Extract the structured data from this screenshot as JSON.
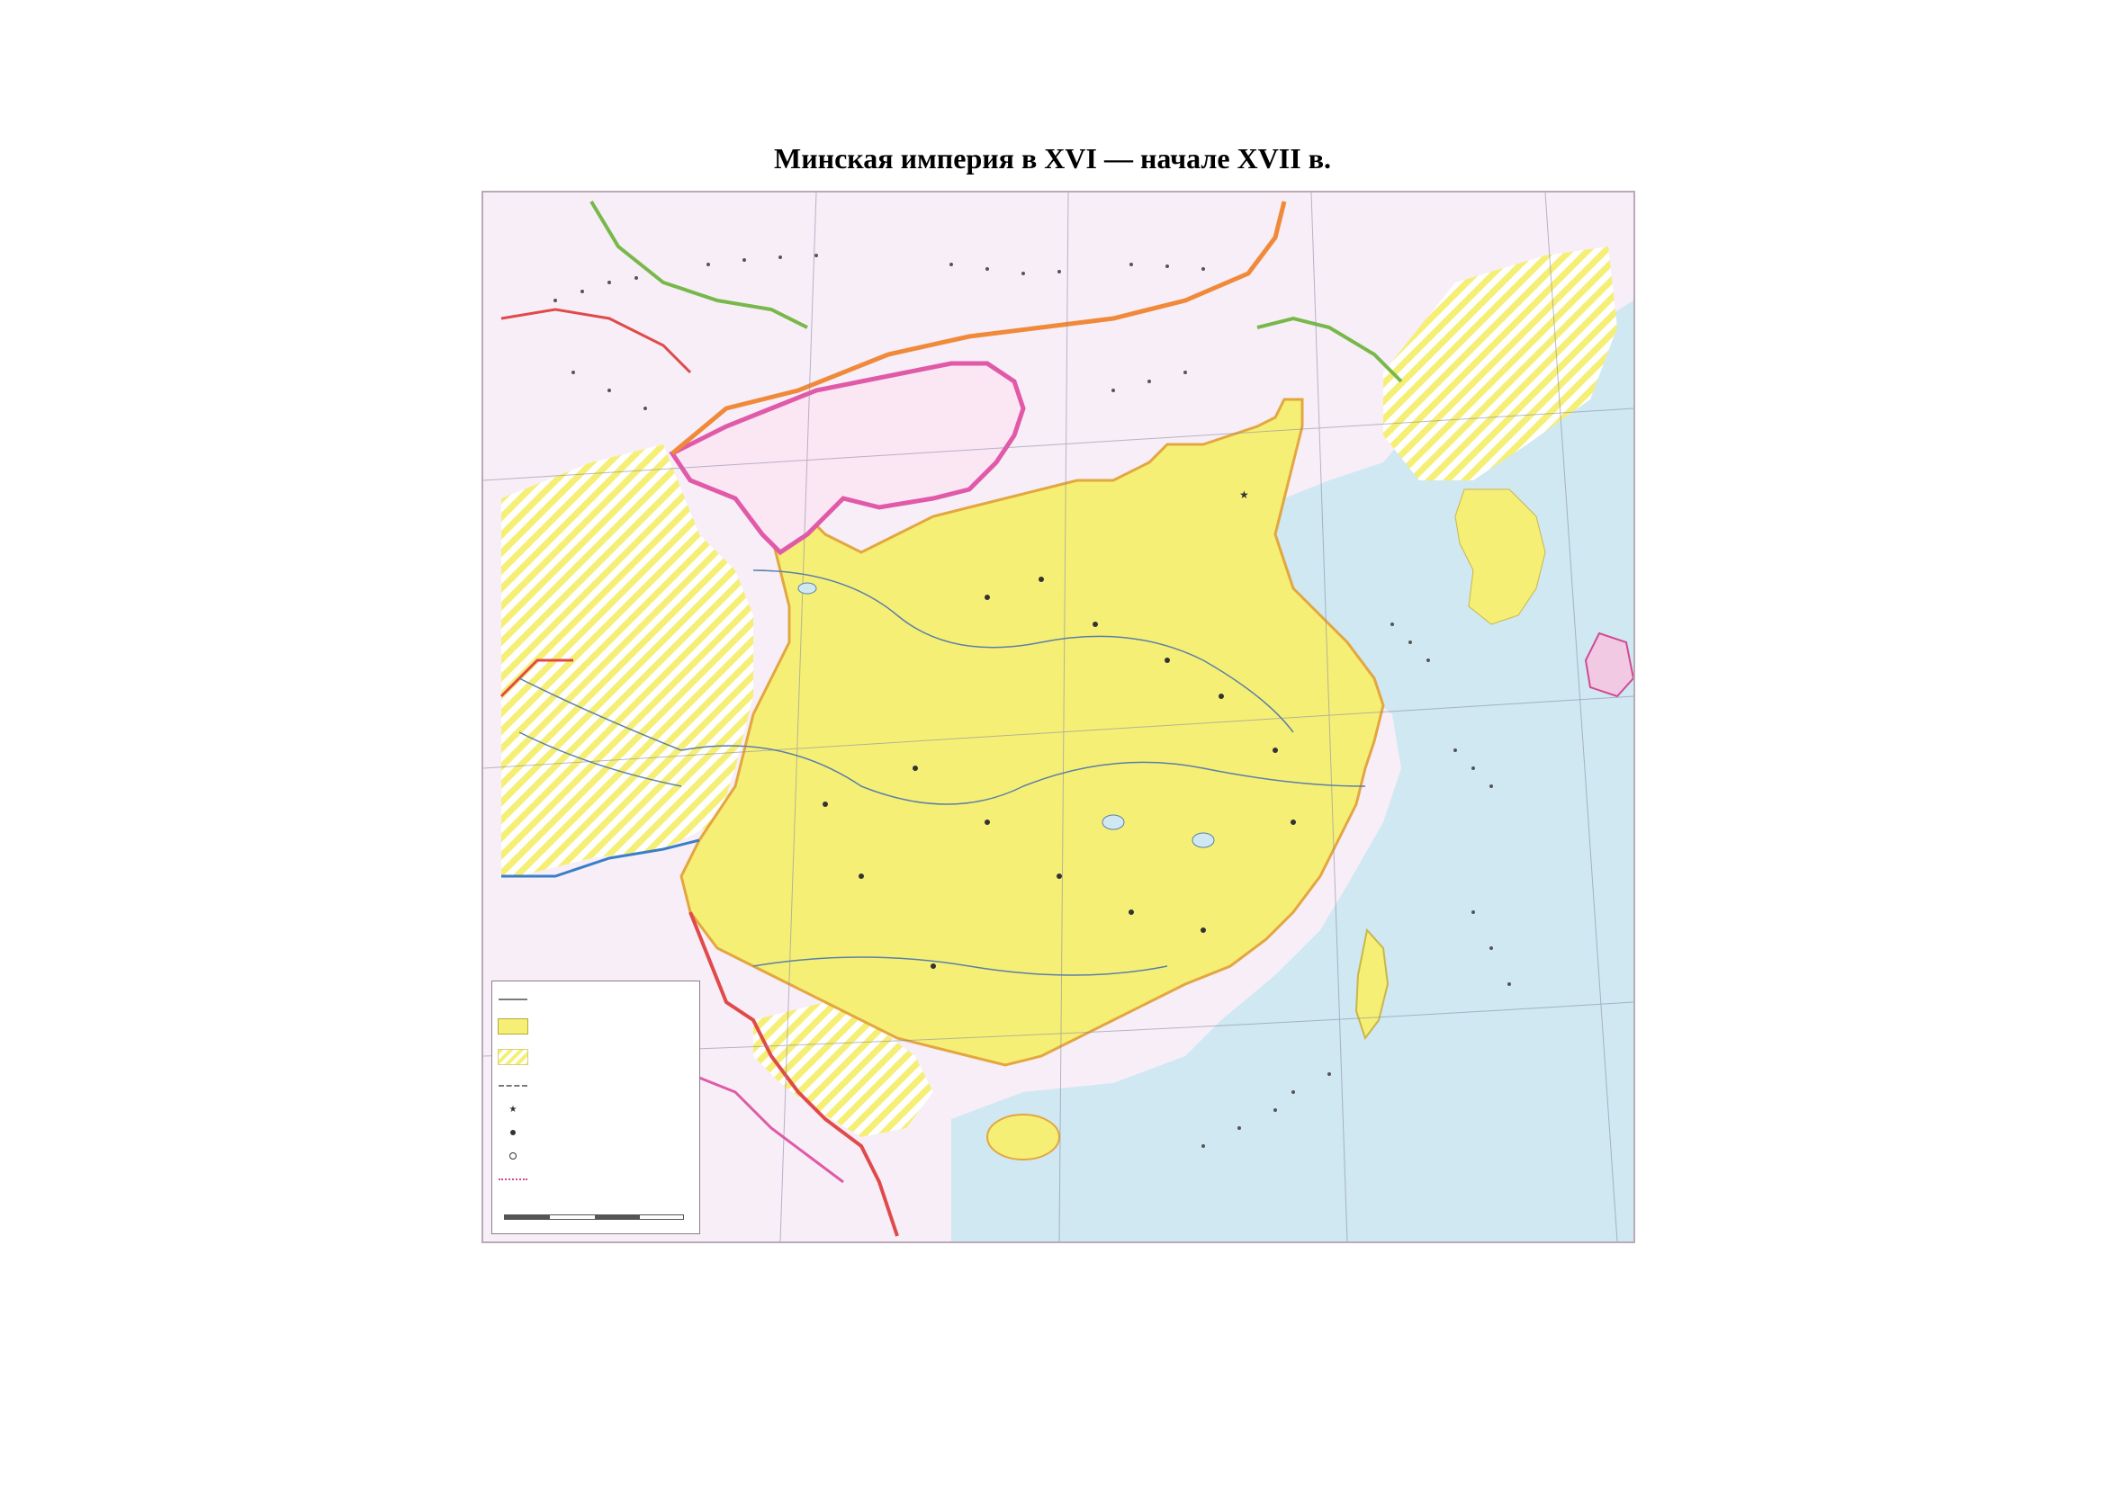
{
  "title": "Минская империя в XVI — начале XVII в.",
  "colors": {
    "ming_territory": "#f6ef76",
    "dependent_hatch": "#f6ef76",
    "sea": "#cfe8f2",
    "land_outside": "#f7eef7",
    "state_border_pink": "#e05aa8",
    "state_border_orange": "#f08a3a",
    "border_green": "#78b84a",
    "border_blue": "#3a7ec8",
    "border_red": "#e04a4a"
  },
  "legend": {
    "items": [
      {
        "key": "line",
        "icon": "state-border-line"
      },
      {
        "key": "yellow",
        "icon": "ming-territory-swatch"
      },
      {
        "key": "hatch",
        "icon": "dependent-territory-swatch"
      },
      {
        "key": "dash",
        "icon": "province-border-line"
      },
      {
        "key": "star",
        "icon": "capital-marker"
      },
      {
        "key": "dot",
        "icon": "province-center-marker"
      },
      {
        "key": "ring",
        "icon": "city-marker"
      },
      {
        "key": "pink",
        "icon": "sea-route-line"
      }
    ]
  }
}
